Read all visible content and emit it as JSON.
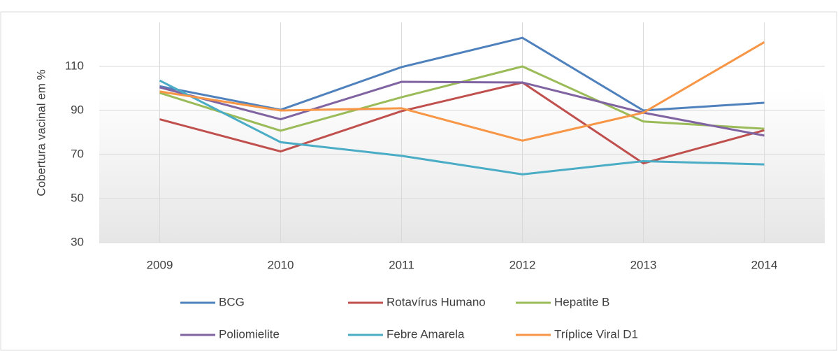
{
  "chart_data": {
    "type": "line",
    "ylabel": "Cobertura  vacinal em %",
    "categories": [
      "2009",
      "2010",
      "2011",
      "2012",
      "2013",
      "2014"
    ],
    "series": [
      {
        "name": "BCG",
        "color": "#4f81bd",
        "values": [
          101,
          90.3,
          109.7,
          123,
          90,
          93.5
        ]
      },
      {
        "name": "Rotavírus Humano",
        "color": "#c0504d",
        "values": [
          86,
          71.4,
          89.7,
          102.7,
          66,
          81
        ]
      },
      {
        "name": "Hepatite B",
        "color": "#9bbb59",
        "values": [
          98,
          80.8,
          96,
          110,
          85,
          81.7
        ]
      },
      {
        "name": "Poliomielite",
        "color": "#8064a2",
        "values": [
          100.5,
          86,
          103,
          102.7,
          89,
          78.6
        ]
      },
      {
        "name": "Febre Amarela",
        "color": "#4bacc6",
        "values": [
          103.6,
          75.6,
          69.4,
          61,
          67,
          65.5
        ]
      },
      {
        "name": "Tríplice Viral  D1",
        "color": "#f79646",
        "values": [
          98.6,
          90,
          91,
          76.3,
          89,
          121
        ]
      }
    ],
    "ylim": [
      30,
      130
    ],
    "yticks": [
      30,
      50,
      70,
      90,
      110
    ],
    "grid": true
  }
}
